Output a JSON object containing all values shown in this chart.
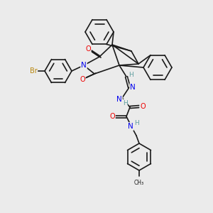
{
  "background_color": "#ebebeb",
  "bond_color": "#1a1a1a",
  "atoms": {
    "Br": {
      "color": "#b8860b"
    },
    "N": {
      "color": "#0000ee"
    },
    "O": {
      "color": "#ee0000"
    },
    "H": {
      "color": "#5f9ea0"
    }
  },
  "figsize": [
    3.0,
    3.0
  ],
  "dpi": 100
}
